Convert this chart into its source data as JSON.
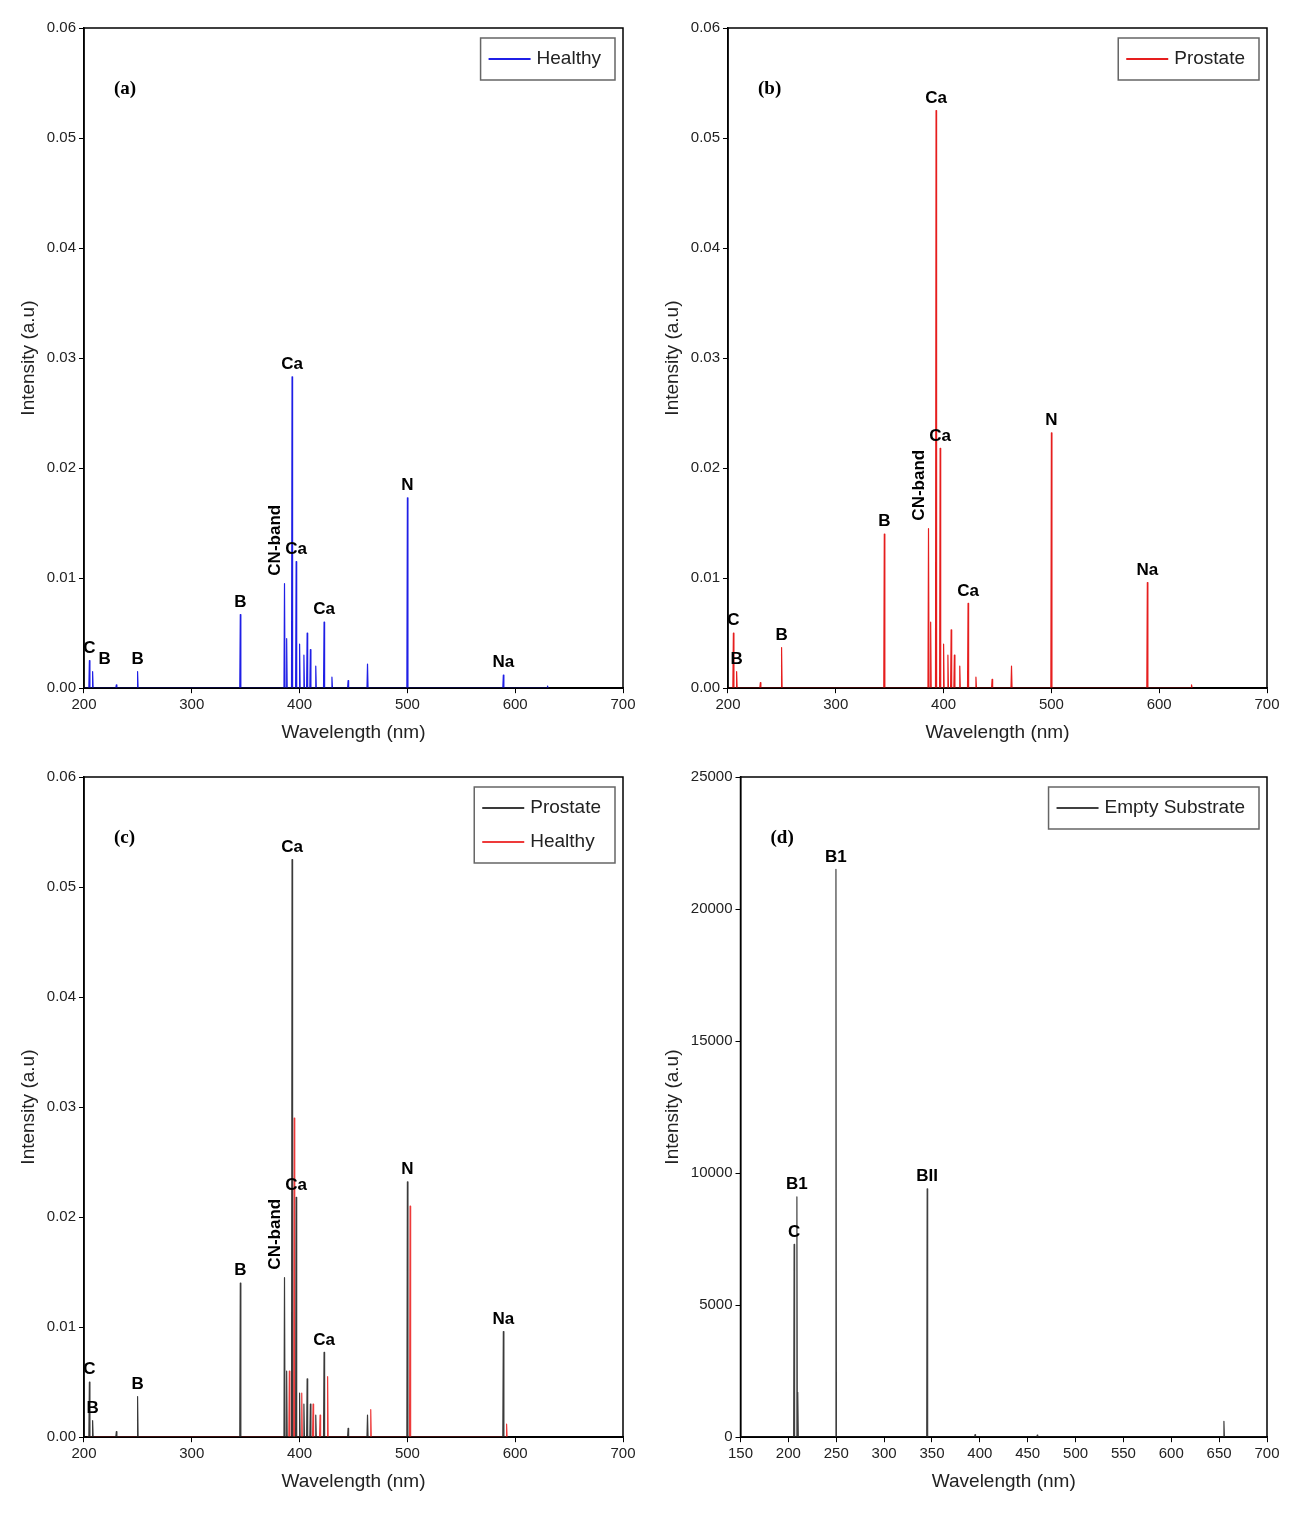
{
  "chart_data": [
    {
      "type": "line",
      "title": "(a)",
      "xlabel": "Wavelength (nm)",
      "ylabel": "Intensity (a.u)",
      "legend": "top right",
      "xlim": [
        200,
        700
      ],
      "xticks": [
        200,
        300,
        400,
        500,
        600,
        700
      ],
      "ylim": [
        0,
        0.06
      ],
      "yticks": [
        {
          "value": 0,
          "label": "0.00"
        },
        {
          "value": 0.01,
          "label": "0.01"
        },
        {
          "value": 0.02,
          "label": "0.02"
        },
        {
          "value": 0.03,
          "label": "0.03"
        },
        {
          "value": 0.04,
          "label": "0.04"
        },
        {
          "value": 0.05,
          "label": "0.05"
        },
        {
          "value": 0.06,
          "label": "0.06"
        }
      ],
      "x": [
        200,
        204.5,
        205,
        205.5,
        207.5,
        208,
        208.5,
        229.5,
        230,
        230.5,
        249.2,
        249.7,
        250.2,
        344.5,
        345,
        345.5,
        385.5,
        386,
        386.5,
        387.5,
        388,
        388.5,
        392.5,
        393,
        393.5,
        396.3,
        396.8,
        397.3,
        399.5,
        400,
        400.5,
        403.5,
        404,
        404.5,
        406.5,
        407,
        407.5,
        409.5,
        410,
        410.5,
        414.5,
        415,
        415.5,
        422.2,
        422.7,
        423.2,
        429.5,
        430,
        430.5,
        444.5,
        445,
        445.5,
        462.5,
        463,
        463.5,
        499.5,
        500,
        500.5,
        588.5,
        589,
        589.5,
        629.5,
        630,
        630.5
      ],
      "series": [
        {
          "name": "Healthy",
          "color": "#1f1fe6",
          "values": [
            0,
            0,
            0.0025,
            0,
            0,
            0.0015,
            0,
            0,
            0.0003,
            0,
            0,
            0.0015,
            0,
            0,
            0.0067,
            0,
            0,
            0.0095,
            0,
            0,
            0.0045,
            0,
            0,
            0.0283,
            0,
            0,
            0.0115,
            0,
            0,
            0.004,
            0,
            0,
            0.003,
            0,
            0,
            0.005,
            0,
            0,
            0.0035,
            0,
            0,
            0.002,
            0,
            0,
            0.006,
            0,
            0,
            0.001,
            0,
            0,
            0.0007,
            0,
            0,
            0.0022,
            0,
            0,
            0.0173,
            0,
            0,
            0.0012,
            0,
            0,
            0.0002,
            0
          ]
        }
      ],
      "annotations": [
        {
          "text": "C",
          "x": 205,
          "y": 0.0025
        },
        {
          "text": "B",
          "x": 208,
          "y": 0.0015
        },
        {
          "text": "B",
          "x": 249.7,
          "y": 0.0015
        },
        {
          "text": "B",
          "x": 345,
          "y": 0.0067
        },
        {
          "text": "CN-band",
          "x": 386,
          "y": 0.0095
        },
        {
          "text": "Ca",
          "x": 393,
          "y": 0.0283
        },
        {
          "text": "Ca",
          "x": 396.8,
          "y": 0.0115
        },
        {
          "text": "Ca",
          "x": 422.7,
          "y": 0.006
        },
        {
          "text": "N",
          "x": 500,
          "y": 0.0173
        },
        {
          "text": "Na",
          "x": 589,
          "y": 0.0012
        }
      ]
    },
    {
      "type": "line",
      "title": "(b)",
      "xlabel": "Wavelength (nm)",
      "ylabel": "Intensity (a.u)",
      "legend": "top right",
      "xlim": [
        200,
        700
      ],
      "xticks": [
        200,
        300,
        400,
        500,
        600,
        700
      ],
      "ylim": [
        0,
        0.06
      ],
      "yticks": [
        {
          "value": 0,
          "label": "0.00"
        },
        {
          "value": 0.01,
          "label": "0.01"
        },
        {
          "value": 0.02,
          "label": "0.02"
        },
        {
          "value": 0.03,
          "label": "0.03"
        },
        {
          "value": 0.04,
          "label": "0.04"
        },
        {
          "value": 0.05,
          "label": "0.05"
        },
        {
          "value": 0.06,
          "label": "0.06"
        }
      ],
      "x": [
        200,
        204.5,
        205,
        205.5,
        207.5,
        208,
        208.5,
        229.5,
        230,
        230.5,
        249.2,
        249.7,
        250.2,
        344.5,
        345,
        345.5,
        385.5,
        386,
        386.5,
        387.5,
        388,
        388.5,
        392.5,
        393,
        393.5,
        396.3,
        396.8,
        397.3,
        399.5,
        400,
        400.5,
        403.5,
        404,
        404.5,
        406.5,
        407,
        407.5,
        409.5,
        410,
        410.5,
        414.5,
        415,
        415.5,
        422.2,
        422.7,
        423.2,
        429.5,
        430,
        430.5,
        444.5,
        445,
        445.5,
        462.5,
        463,
        463.5,
        499.5,
        500,
        500.5,
        588.5,
        589,
        589.5,
        629.5,
        630,
        630.5
      ],
      "series": [
        {
          "name": "Prostate",
          "color": "#e61e1e",
          "values": [
            0,
            0,
            0.005,
            0,
            0,
            0.0015,
            0,
            0,
            0.0005,
            0,
            0,
            0.0037,
            0,
            0,
            0.014,
            0,
            0,
            0.0145,
            0,
            0,
            0.006,
            0,
            0,
            0.0525,
            0,
            0,
            0.0218,
            0,
            0,
            0.004,
            0,
            0,
            0.003,
            0,
            0,
            0.0053,
            0,
            0,
            0.003,
            0,
            0,
            0.002,
            0,
            0,
            0.0077,
            0,
            0,
            0.001,
            0,
            0,
            0.0008,
            0,
            0,
            0.002,
            0,
            0,
            0.0232,
            0,
            0,
            0.0096,
            0,
            0,
            0.0003,
            0
          ]
        }
      ],
      "annotations": [
        {
          "text": "C",
          "x": 205,
          "y": 0.005
        },
        {
          "text": "B",
          "x": 208,
          "y": 0.0015
        },
        {
          "text": "B",
          "x": 249.7,
          "y": 0.0037
        },
        {
          "text": "B",
          "x": 345,
          "y": 0.014
        },
        {
          "text": "CN-band",
          "x": 386,
          "y": 0.0145
        },
        {
          "text": "Ca",
          "x": 393,
          "y": 0.0525
        },
        {
          "text": "Ca",
          "x": 396.8,
          "y": 0.0218
        },
        {
          "text": "Ca",
          "x": 422.7,
          "y": 0.0077
        },
        {
          "text": "N",
          "x": 500,
          "y": 0.0232
        },
        {
          "text": "Na",
          "x": 589,
          "y": 0.0096
        }
      ]
    },
    {
      "type": "line",
      "title": "(c)",
      "xlabel": "Wavelength (nm)",
      "ylabel": "Intensity (a.u)",
      "legend": "top right",
      "xlim": [
        200,
        700
      ],
      "xticks": [
        200,
        300,
        400,
        500,
        600,
        700
      ],
      "ylim": [
        0,
        0.06
      ],
      "yticks": [
        {
          "value": 0,
          "label": "0.00"
        },
        {
          "value": 0.01,
          "label": "0.01"
        },
        {
          "value": 0.02,
          "label": "0.02"
        },
        {
          "value": 0.03,
          "label": "0.03"
        },
        {
          "value": 0.04,
          "label": "0.04"
        },
        {
          "value": 0.05,
          "label": "0.05"
        },
        {
          "value": 0.06,
          "label": "0.06"
        }
      ],
      "series": [
        {
          "name": "Prostate",
          "color": "#3a3a3a",
          "x": [
            204.5,
            205,
            205.5,
            206,
            207.5,
            208,
            208.5,
            209,
            229.5,
            230,
            230.5,
            231,
            249.2,
            249.7,
            250.2,
            251,
            344.5,
            345,
            345.5,
            346,
            385.5,
            386,
            386.5,
            387,
            387.5,
            388,
            388.5,
            389,
            392.5,
            393,
            393.5,
            394,
            396.3,
            396.8,
            397.3,
            398,
            399.5,
            400,
            400.5,
            401,
            403.5,
            404,
            404.5,
            405,
            406.5,
            407,
            407.5,
            408,
            409.5,
            410,
            410.5,
            411,
            414.5,
            415,
            415.5,
            416,
            422.2,
            422.7,
            423.2,
            424,
            444.5,
            445,
            445.5,
            446,
            462.5,
            463,
            463.5,
            464,
            499.5,
            500,
            500.5,
            501,
            588.5,
            589,
            589.5
          ],
          "values": [
            0,
            0.005,
            0,
            null,
            0,
            0.0015,
            0,
            null,
            0,
            0.0005,
            0,
            null,
            0,
            0.0037,
            0,
            null,
            0,
            0.014,
            0,
            null,
            0,
            0.0145,
            0,
            null,
            0,
            0.006,
            0,
            null,
            0,
            0.0525,
            0,
            null,
            0,
            0.0218,
            0,
            null,
            0,
            0.004,
            0,
            null,
            0,
            0.003,
            0,
            null,
            0,
            0.0053,
            0,
            null,
            0,
            0.003,
            0,
            null,
            0,
            0.002,
            0,
            null,
            0,
            0.0077,
            0,
            null,
            0,
            0.0008,
            0,
            null,
            0,
            0.002,
            0,
            null,
            0,
            0.0232,
            0,
            null,
            0,
            0.0096,
            0
          ]
        },
        {
          "name": "Healthy",
          "color": "#ee3a3a",
          "x": [
            203,
            390,
            390.5,
            391,
            394.5,
            395,
            395.5,
            401.5,
            402,
            402.5,
            412,
            412.5,
            413,
            418.5,
            419,
            419.5,
            425.5,
            426,
            426.5,
            465.5,
            466,
            466.5,
            502,
            502.5,
            503,
            591.5,
            592,
            592.5
          ],
          "values": [
            0,
            0,
            0.006,
            0,
            0,
            0.029,
            0,
            0,
            0.004,
            0,
            0,
            0.003,
            0,
            0,
            0.002,
            0,
            0,
            0.0055,
            0,
            0,
            0.0025,
            0,
            0,
            0.021,
            0,
            0,
            0.0012,
            0
          ]
        }
      ],
      "annotations": [
        {
          "text": "C",
          "x": 205,
          "y": 0.005
        },
        {
          "text": "B",
          "x": 208,
          "y": 0.0015
        },
        {
          "text": "B",
          "x": 249.7,
          "y": 0.0037
        },
        {
          "text": "B",
          "x": 345,
          "y": 0.014
        },
        {
          "text": "CN-band",
          "x": 386,
          "y": 0.0145
        },
        {
          "text": "Ca",
          "x": 393,
          "y": 0.0525
        },
        {
          "text": "Ca",
          "x": 396.8,
          "y": 0.0218
        },
        {
          "text": "Ca",
          "x": 422.7,
          "y": 0.0077
        },
        {
          "text": "N",
          "x": 500,
          "y": 0.0232
        },
        {
          "text": "Na",
          "x": 589,
          "y": 0.0096
        }
      ]
    },
    {
      "type": "line",
      "title": "(d)",
      "xlabel": "Wavelength (nm)",
      "ylabel": "Intensity (a.u)",
      "legend": "top right",
      "xlim": [
        150,
        700
      ],
      "xticks": [
        150,
        200,
        250,
        300,
        350,
        400,
        450,
        500,
        550,
        600,
        650,
        700
      ],
      "ylim": [
        0,
        25000
      ],
      "yticks": [
        0,
        5000,
        10000,
        15000,
        20000,
        25000
      ],
      "x": [
        150,
        205.5,
        206,
        206.5,
        208.4,
        208.9,
        209.4,
        209.6,
        210,
        210.4,
        249.2,
        249.7,
        250.2,
        344.5,
        345,
        345.5,
        394.5,
        395,
        395.5,
        459.5,
        460,
        460.5,
        654.5,
        655,
        655.5,
        700
      ],
      "series": [
        {
          "name": "Empty Substrate",
          "color": "#404040",
          "values": [
            0,
            0,
            7300,
            0,
            0,
            9100,
            0,
            0,
            1700,
            0,
            0,
            21500,
            0,
            0,
            9400,
            0,
            0,
            100,
            0,
            0,
            80,
            0,
            0,
            600,
            0,
            0
          ]
        }
      ],
      "annotations": [
        {
          "text": "C",
          "x": 206,
          "y": 7300
        },
        {
          "text": "B1",
          "x": 208.9,
          "y": 9100
        },
        {
          "text": "B1",
          "x": 249.7,
          "y": 21500
        },
        {
          "text": "BII",
          "x": 345,
          "y": 9400
        }
      ]
    }
  ]
}
